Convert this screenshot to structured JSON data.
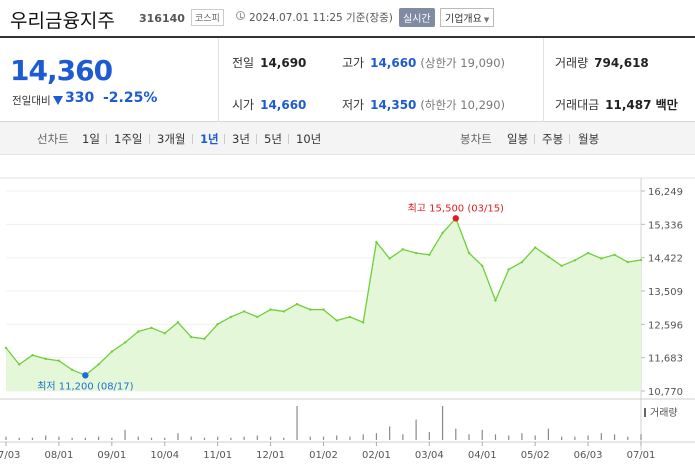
{
  "header": {
    "company_name": "우리금융지주",
    "code": "316140",
    "market": "코스피",
    "timestamp": "2024.07.01 11:25 기준(장중)",
    "realtime_label": "실시간",
    "company_info_label": "기업개요"
  },
  "quote": {
    "price": "14,360",
    "change_label": "전일대비",
    "change": "330",
    "change_rate": "-2.25%",
    "prev_close_label": "전일",
    "prev_close": "14,690",
    "open_label": "시가",
    "open": "14,660",
    "high_label": "고가",
    "high": "14,660",
    "upper_limit": "(상한가 19,090)",
    "low_label": "저가",
    "low": "14,350",
    "lower_limit": "(하한가 10,290)",
    "volume_label": "거래량",
    "volume": "794,618",
    "amount_label": "거래대금",
    "amount": "11,487 백만"
  },
  "tabs": {
    "line_title": "선차트",
    "line_periods": [
      "1일",
      "1주일",
      "3개월",
      "1년",
      "3년",
      "5년",
      "10년"
    ],
    "selected_index": 3,
    "candle_title": "봉차트",
    "candle_periods": [
      "일봉",
      "주봉",
      "월봉"
    ]
  },
  "colors": {
    "price_down": "#1e5bd2",
    "line": "#6fcf3b",
    "fill": "#e4f7d9",
    "high_marker": "#e02020",
    "low_marker": "#1e6fd2",
    "volume_bar": "#8a8a8a"
  },
  "chart_data": {
    "type": "area",
    "ylim": [
      10770,
      16249
    ],
    "y_ticks": [
      "16,249",
      "15,336",
      "14,422",
      "13,509",
      "12,596",
      "11,683",
      "10,770"
    ],
    "x_ticks": [
      "07/03",
      "08/01",
      "09/01",
      "10/04",
      "11/01",
      "12/01",
      "01/02",
      "02/01",
      "03/04",
      "04/01",
      "05/02",
      "06/03",
      "07/01"
    ],
    "x": [
      "07/03",
      "07/10",
      "07/17",
      "07/24",
      "08/01",
      "08/08",
      "08/17",
      "08/24",
      "09/01",
      "09/08",
      "09/15",
      "09/22",
      "10/04",
      "10/11",
      "10/18",
      "10/25",
      "11/01",
      "11/08",
      "11/15",
      "11/22",
      "12/01",
      "12/08",
      "12/15",
      "12/22",
      "01/02",
      "01/09",
      "01/16",
      "01/23",
      "02/01",
      "02/08",
      "02/15",
      "02/22",
      "03/04",
      "03/11",
      "03/15",
      "03/22",
      "04/01",
      "04/08",
      "04/15",
      "04/22",
      "05/02",
      "05/09",
      "05/16",
      "05/23",
      "06/03",
      "06/10",
      "06/17",
      "06/24",
      "07/01"
    ],
    "y": [
      11950,
      11500,
      11750,
      11650,
      11600,
      11350,
      11200,
      11500,
      11850,
      12100,
      12400,
      12500,
      12350,
      12650,
      12250,
      12200,
      12600,
      12800,
      12950,
      12800,
      13000,
      12950,
      13150,
      13000,
      13000,
      12700,
      12800,
      12650,
      14850,
      14400,
      14650,
      14550,
      14500,
      15100,
      15500,
      14550,
      14200,
      13250,
      14100,
      14300,
      14700,
      14450,
      14200,
      14350,
      14550,
      14400,
      14500,
      14300,
      14360
    ],
    "high_annotation": "최고 15,500 (03/15)",
    "low_annotation": "최저 11,200 (08/17)",
    "volume_label": "거래량",
    "volume": [
      3,
      2,
      2,
      4,
      3,
      2,
      2,
      3,
      2,
      9,
      3,
      2,
      2,
      6,
      3,
      2,
      3,
      2,
      3,
      4,
      3,
      2,
      30,
      3,
      3,
      4,
      3,
      5,
      6,
      12,
      5,
      18,
      7,
      30,
      10,
      5,
      9,
      5,
      4,
      6,
      4,
      10,
      3,
      3,
      4,
      6,
      5,
      3,
      5
    ]
  }
}
